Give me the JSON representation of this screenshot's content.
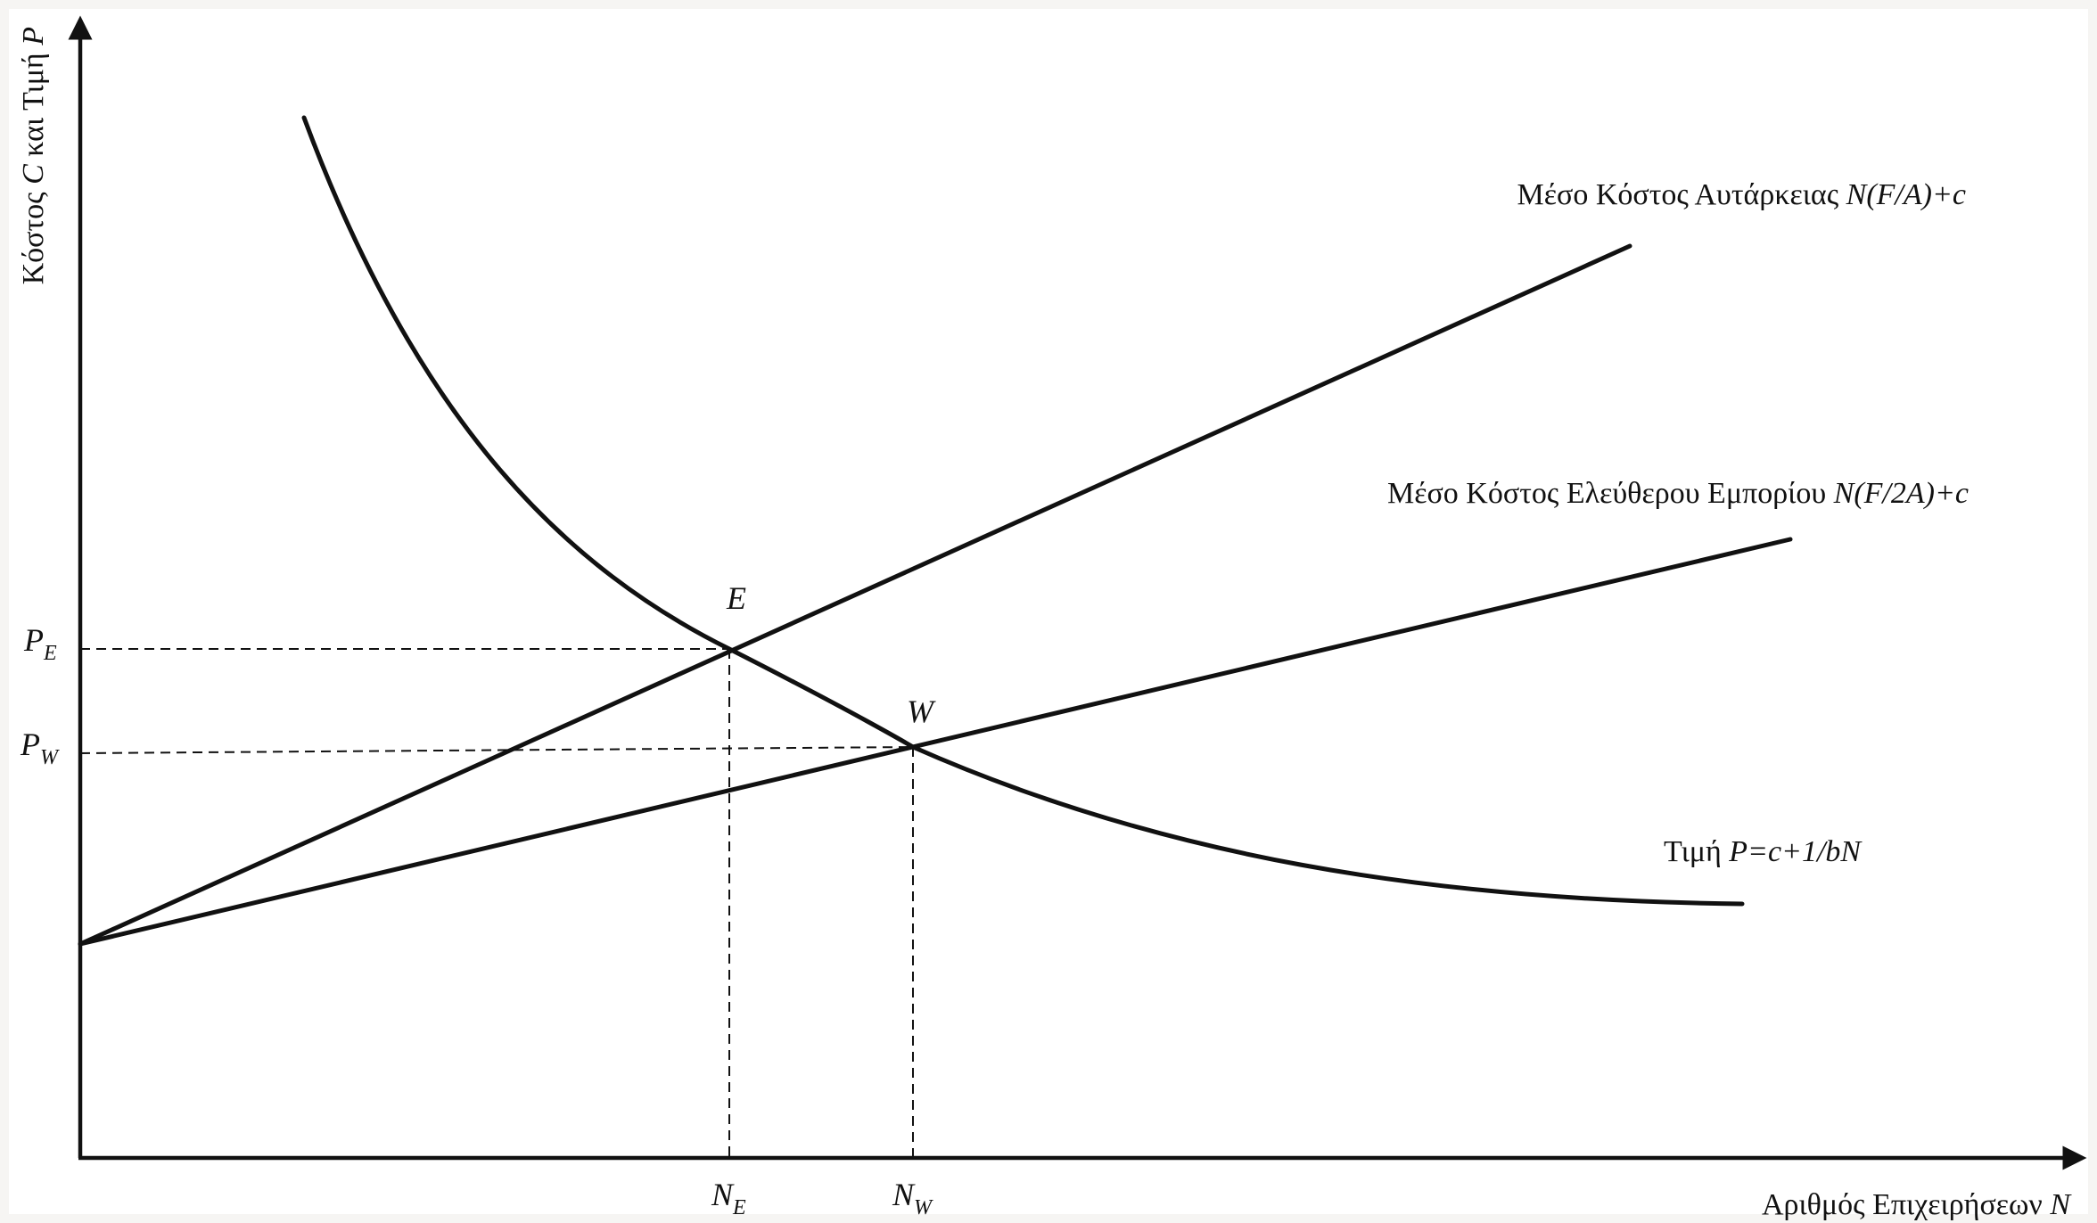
{
  "diagram": {
    "y_axis": {
      "prefix": "Κόστος ",
      "var1": "C",
      "middle": " και Τιμή ",
      "var2": "P"
    },
    "x_axis": {
      "prefix": "Αριθμός Επιχειρήσεων ",
      "var": "N"
    },
    "curves": {
      "autarky": {
        "prefix": "Μέσο Κόστος Αυτάρκειας ",
        "formula": "N(F/A)+c"
      },
      "free_trade": {
        "prefix": "Μέσο Κόστος Ελεύθερου Εμπορίου ",
        "formula": "N(F/2A)+c"
      },
      "price": {
        "prefix": "Τιμή ",
        "formula": "P=c+1/bN"
      }
    },
    "points": {
      "E": {
        "label": "E",
        "price_label": "P",
        "price_sub": "E",
        "n_label": "N",
        "n_sub": "E"
      },
      "W": {
        "label": "W",
        "price_label": "P",
        "price_sub": "W",
        "n_label": "N",
        "n_sub": "W"
      }
    }
  }
}
